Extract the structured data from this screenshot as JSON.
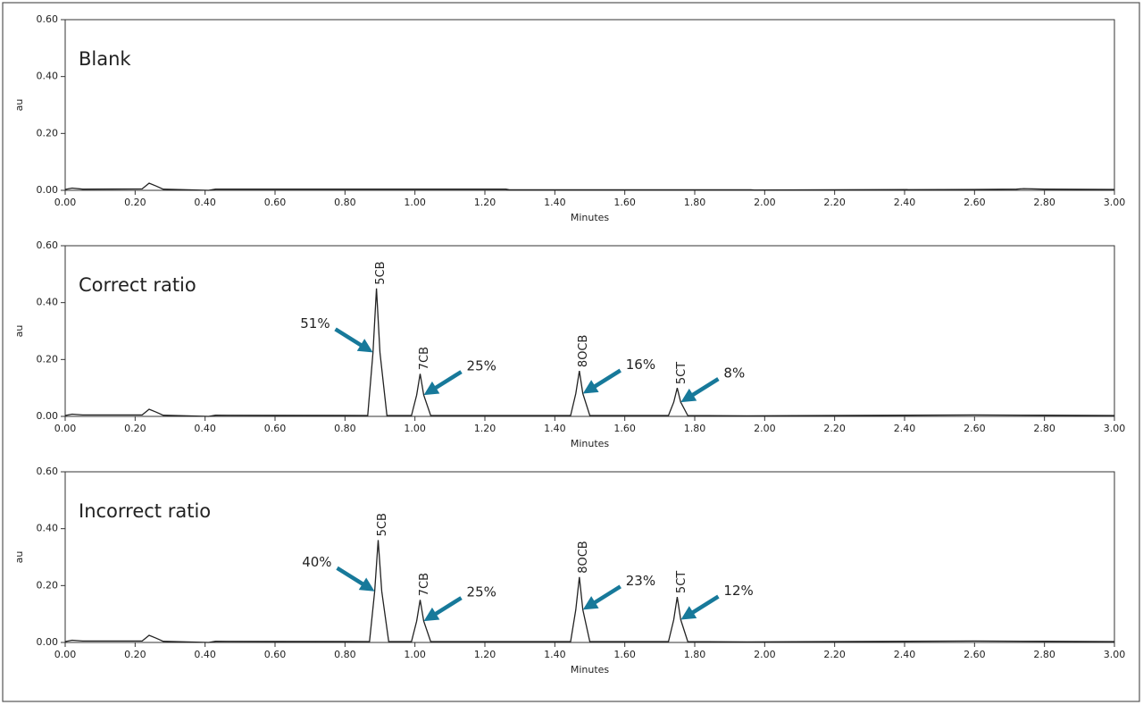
{
  "chart_data": [
    {
      "type": "line",
      "title": "Blank",
      "xlabel": "Minutes",
      "ylabel": "au",
      "xlim": [
        0,
        3
      ],
      "ylim": [
        0,
        0.6
      ],
      "xticks": [
        {
          "value": 0,
          "label": "0.00"
        },
        {
          "value": 0.2,
          "label": "0.20"
        },
        {
          "value": 0.4,
          "label": "0.40"
        },
        {
          "value": 0.6,
          "label": "0.60"
        },
        {
          "value": 0.8,
          "label": "0.80"
        },
        {
          "value": 1,
          "label": "1.00"
        },
        {
          "value": 1.2,
          "label": "1.20"
        },
        {
          "value": 1.4,
          "label": "1.40"
        },
        {
          "value": 1.6,
          "label": "1.60"
        },
        {
          "value": 1.8,
          "label": "1.80"
        },
        {
          "value": 2,
          "label": "2.00"
        },
        {
          "value": 2.2,
          "label": "2.20"
        },
        {
          "value": 2.4,
          "label": "2.40"
        },
        {
          "value": 2.6,
          "label": "2.60"
        },
        {
          "value": 2.8,
          "label": "2.80"
        },
        {
          "value": 3,
          "label": "3.00"
        }
      ],
      "yticks": [
        {
          "value": 0,
          "label": "0.00"
        },
        {
          "value": 0.2,
          "label": "0.20"
        },
        {
          "value": 0.4,
          "label": "0.40"
        },
        {
          "value": 0.6,
          "label": "0.60"
        }
      ],
      "color": "#222222",
      "x": [
        0,
        0.02,
        0.05,
        0.22,
        0.24,
        0.26,
        0.28,
        0.41,
        0.43,
        1.26,
        1.27,
        1.96,
        1.97,
        2.6,
        2.72,
        2.74,
        2.8,
        3.0
      ],
      "values": [
        0.003,
        0.008,
        0.004,
        0.005,
        0.025,
        0.015,
        0.004,
        0.0,
        0.004,
        0.004,
        0.002,
        0.002,
        0.001,
        0.003,
        0.004,
        0.006,
        0.004,
        0.003
      ],
      "peaks": []
    },
    {
      "type": "line",
      "title": "Correct  ratio",
      "xlabel": "Minutes",
      "ylabel": "au",
      "xlim": [
        0,
        3
      ],
      "ylim": [
        0,
        0.6
      ],
      "xticks": [
        {
          "value": 0,
          "label": "0.00"
        },
        {
          "value": 0.2,
          "label": "0.20"
        },
        {
          "value": 0.4,
          "label": "0.40"
        },
        {
          "value": 0.6,
          "label": "0.60"
        },
        {
          "value": 0.8,
          "label": "0.80"
        },
        {
          "value": 1,
          "label": "1.00"
        },
        {
          "value": 1.2,
          "label": "1.20"
        },
        {
          "value": 1.4,
          "label": "1.40"
        },
        {
          "value": 1.6,
          "label": "1.60"
        },
        {
          "value": 1.8,
          "label": "1.80"
        },
        {
          "value": 2,
          "label": "2.00"
        },
        {
          "value": 2.2,
          "label": "2.20"
        },
        {
          "value": 2.4,
          "label": "2.40"
        },
        {
          "value": 2.6,
          "label": "2.60"
        },
        {
          "value": 2.8,
          "label": "2.80"
        },
        {
          "value": 3,
          "label": "3.00"
        }
      ],
      "yticks": [
        {
          "value": 0,
          "label": "0.00"
        },
        {
          "value": 0.2,
          "label": "0.20"
        },
        {
          "value": 0.4,
          "label": "0.40"
        },
        {
          "value": 0.6,
          "label": "0.60"
        }
      ],
      "color": "#222222",
      "x": [
        0,
        0.02,
        0.05,
        0.22,
        0.24,
        0.26,
        0.28,
        0.41,
        0.43,
        0.865,
        0.88,
        0.89,
        0.9,
        0.92,
        0.99,
        1.005,
        1.015,
        1.025,
        1.045,
        1.445,
        1.46,
        1.47,
        1.48,
        1.5,
        1.725,
        1.74,
        1.75,
        1.76,
        1.78,
        1.95,
        2.6,
        2.8,
        3.0
      ],
      "values": [
        0.003,
        0.008,
        0.005,
        0.005,
        0.025,
        0.015,
        0.004,
        0.0,
        0.004,
        0.003,
        0.225,
        0.45,
        0.225,
        0.003,
        0.003,
        0.075,
        0.15,
        0.075,
        0.003,
        0.003,
        0.08,
        0.16,
        0.08,
        0.003,
        0.003,
        0.05,
        0.1,
        0.05,
        0.003,
        0.002,
        0.005,
        0.004,
        0.003
      ],
      "peaks": [
        {
          "label": "5CB",
          "x": 0.89,
          "y": 0.45,
          "annotation": "51%"
        },
        {
          "label": "7CB",
          "x": 1.015,
          "y": 0.15,
          "annotation": "25%"
        },
        {
          "label": "8OCB",
          "x": 1.47,
          "y": 0.16,
          "annotation": "16%"
        },
        {
          "label": "5CT",
          "x": 1.75,
          "y": 0.1,
          "annotation": "8%"
        }
      ]
    },
    {
      "type": "line",
      "title": "Incorrect  ratio",
      "xlabel": "Minutes",
      "ylabel": "au",
      "xlim": [
        0,
        3
      ],
      "ylim": [
        0,
        0.6
      ],
      "xticks": [
        {
          "value": 0,
          "label": "0.00"
        },
        {
          "value": 0.2,
          "label": "0.20"
        },
        {
          "value": 0.4,
          "label": "0.40"
        },
        {
          "value": 0.6,
          "label": "0.60"
        },
        {
          "value": 0.8,
          "label": "0.80"
        },
        {
          "value": 1,
          "label": "1.00"
        },
        {
          "value": 1.2,
          "label": "1.20"
        },
        {
          "value": 1.4,
          "label": "1.40"
        },
        {
          "value": 1.6,
          "label": "1.60"
        },
        {
          "value": 1.8,
          "label": "1.80"
        },
        {
          "value": 2,
          "label": "2.00"
        },
        {
          "value": 2.2,
          "label": "2.20"
        },
        {
          "value": 2.4,
          "label": "2.40"
        },
        {
          "value": 2.6,
          "label": "2.60"
        },
        {
          "value": 2.8,
          "label": "2.80"
        },
        {
          "value": 3,
          "label": "3.00"
        }
      ],
      "yticks": [
        {
          "value": 0,
          "label": "0.00"
        },
        {
          "value": 0.2,
          "label": "0.20"
        },
        {
          "value": 0.4,
          "label": "0.40"
        },
        {
          "value": 0.6,
          "label": "0.60"
        }
      ],
      "color": "#222222",
      "x": [
        0,
        0.02,
        0.05,
        0.22,
        0.24,
        0.26,
        0.28,
        0.41,
        0.43,
        0.87,
        0.885,
        0.895,
        0.905,
        0.925,
        0.99,
        1.005,
        1.015,
        1.025,
        1.045,
        1.445,
        1.46,
        1.47,
        1.48,
        1.5,
        1.725,
        1.74,
        1.75,
        1.76,
        1.78,
        1.95,
        2.6,
        2.8,
        3.0
      ],
      "values": [
        0.003,
        0.008,
        0.005,
        0.005,
        0.025,
        0.015,
        0.004,
        0.0,
        0.004,
        0.003,
        0.18,
        0.36,
        0.18,
        0.003,
        0.003,
        0.075,
        0.15,
        0.075,
        0.003,
        0.003,
        0.115,
        0.23,
        0.115,
        0.003,
        0.003,
        0.08,
        0.16,
        0.08,
        0.003,
        0.002,
        0.005,
        0.004,
        0.003
      ],
      "peaks": [
        {
          "label": "5CB",
          "x": 0.895,
          "y": 0.36,
          "annotation": "40%"
        },
        {
          "label": "7CB",
          "x": 1.015,
          "y": 0.15,
          "annotation": "25%"
        },
        {
          "label": "8OCB",
          "x": 1.47,
          "y": 0.23,
          "annotation": "23%"
        },
        {
          "label": "5CT",
          "x": 1.75,
          "y": 0.16,
          "annotation": "12%"
        }
      ]
    }
  ]
}
